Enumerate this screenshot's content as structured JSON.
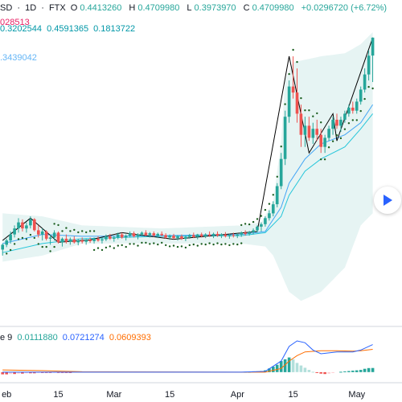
{
  "header": {
    "symbol_fragment": "SD",
    "separator1": "·",
    "interval": "1D",
    "separator2": "·",
    "exchange": "FTX",
    "o_label": "O",
    "open": "0.4413260",
    "h_label": "H",
    "high": "0.4709980",
    "l_label": "L",
    "low": "0.3973970",
    "c_label": "C",
    "close": "0.4709980",
    "change": "+0.0296720 (+6.72%)",
    "volume_fragment": "028513"
  },
  "indicators": {
    "bollinger_values": [
      "0.3202544",
      "0.4591365",
      "0.1813722"
    ],
    "ema_value": ".3439042",
    "macd_label_fragment": "e 9",
    "macd_values": [
      "0.0111880",
      "0.0721274",
      "0.0609393"
    ]
  },
  "colors": {
    "up": "#26a69a",
    "down": "#ef5350",
    "volume_text": "#e91e63",
    "bb_text": "#0097a7",
    "ema_text": "#64b5f6",
    "macd_line": "#2962ff",
    "signal_line": "#ff6d00",
    "hist_pos_strong": "#26a69a",
    "hist_pos_weak": "#b2dfdb",
    "hist_neg_strong": "#ef5350",
    "hist_neg_weak": "#ffcdd2",
    "psar": "#1b5e20",
    "band_fill": "#e6f4f3",
    "zigzag": "#000000"
  },
  "x_axis": {
    "ticks": [
      {
        "label": "eb",
        "day": 1
      },
      {
        "label": "15",
        "day": 14
      },
      {
        "label": "Mar",
        "day": 28
      },
      {
        "label": "15",
        "day": 42
      },
      {
        "label": "Apr",
        "day": 59
      },
      {
        "label": "15",
        "day": 73
      },
      {
        "label": "May",
        "day": 89
      }
    ]
  },
  "chart_data": {
    "type": "candlestick",
    "price_range": [
      0.03,
      0.48
    ],
    "macd_range": [
      -0.02,
      0.12
    ],
    "candles": [
      [
        0.12,
        0.13,
        0.11,
        0.128
      ],
      [
        0.128,
        0.138,
        0.124,
        0.135
      ],
      [
        0.135,
        0.15,
        0.13,
        0.145
      ],
      [
        0.145,
        0.16,
        0.14,
        0.155
      ],
      [
        0.155,
        0.172,
        0.148,
        0.165
      ],
      [
        0.165,
        0.17,
        0.15,
        0.155
      ],
      [
        0.155,
        0.165,
        0.148,
        0.16
      ],
      [
        0.16,
        0.175,
        0.155,
        0.17
      ],
      [
        0.17,
        0.172,
        0.15,
        0.152
      ],
      [
        0.152,
        0.16,
        0.14,
        0.145
      ],
      [
        0.145,
        0.155,
        0.135,
        0.15
      ],
      [
        0.15,
        0.152,
        0.135,
        0.138
      ],
      [
        0.138,
        0.145,
        0.128,
        0.14
      ],
      [
        0.14,
        0.152,
        0.135,
        0.148
      ],
      [
        0.148,
        0.15,
        0.13,
        0.132
      ],
      [
        0.132,
        0.14,
        0.125,
        0.138
      ],
      [
        0.138,
        0.145,
        0.13,
        0.133
      ],
      [
        0.133,
        0.14,
        0.128,
        0.137
      ],
      [
        0.137,
        0.142,
        0.13,
        0.132
      ],
      [
        0.132,
        0.138,
        0.127,
        0.135
      ],
      [
        0.135,
        0.14,
        0.13,
        0.133
      ],
      [
        0.133,
        0.138,
        0.128,
        0.136
      ],
      [
        0.136,
        0.14,
        0.131,
        0.134
      ],
      [
        0.134,
        0.14,
        0.13,
        0.138
      ],
      [
        0.138,
        0.142,
        0.133,
        0.135
      ],
      [
        0.135,
        0.14,
        0.13,
        0.137
      ],
      [
        0.137,
        0.145,
        0.134,
        0.142
      ],
      [
        0.142,
        0.146,
        0.136,
        0.138
      ],
      [
        0.138,
        0.143,
        0.133,
        0.14
      ],
      [
        0.14,
        0.148,
        0.137,
        0.145
      ],
      [
        0.145,
        0.148,
        0.138,
        0.14
      ],
      [
        0.14,
        0.145,
        0.135,
        0.143
      ],
      [
        0.143,
        0.15,
        0.14,
        0.147
      ],
      [
        0.147,
        0.15,
        0.14,
        0.142
      ],
      [
        0.142,
        0.147,
        0.137,
        0.145
      ],
      [
        0.145,
        0.15,
        0.142,
        0.148
      ],
      [
        0.148,
        0.152,
        0.142,
        0.144
      ],
      [
        0.144,
        0.149,
        0.14,
        0.147
      ],
      [
        0.147,
        0.15,
        0.141,
        0.143
      ],
      [
        0.143,
        0.148,
        0.139,
        0.146
      ],
      [
        0.146,
        0.15,
        0.142,
        0.144
      ],
      [
        0.144,
        0.147,
        0.138,
        0.14
      ],
      [
        0.14,
        0.145,
        0.136,
        0.143
      ],
      [
        0.143,
        0.146,
        0.137,
        0.139
      ],
      [
        0.139,
        0.144,
        0.135,
        0.142
      ],
      [
        0.142,
        0.145,
        0.136,
        0.138
      ],
      [
        0.138,
        0.143,
        0.134,
        0.141
      ],
      [
        0.141,
        0.146,
        0.138,
        0.144
      ],
      [
        0.144,
        0.148,
        0.139,
        0.141
      ],
      [
        0.141,
        0.146,
        0.137,
        0.145
      ],
      [
        0.145,
        0.148,
        0.14,
        0.142
      ],
      [
        0.142,
        0.147,
        0.139,
        0.145
      ],
      [
        0.145,
        0.15,
        0.141,
        0.143
      ],
      [
        0.143,
        0.148,
        0.139,
        0.146
      ],
      [
        0.146,
        0.15,
        0.141,
        0.143
      ],
      [
        0.143,
        0.147,
        0.139,
        0.145
      ],
      [
        0.145,
        0.149,
        0.14,
        0.142
      ],
      [
        0.142,
        0.146,
        0.138,
        0.144
      ],
      [
        0.144,
        0.148,
        0.14,
        0.143
      ],
      [
        0.143,
        0.147,
        0.139,
        0.145
      ],
      [
        0.145,
        0.15,
        0.141,
        0.148
      ],
      [
        0.148,
        0.152,
        0.143,
        0.146
      ],
      [
        0.146,
        0.151,
        0.143,
        0.149
      ],
      [
        0.149,
        0.155,
        0.145,
        0.152
      ],
      [
        0.152,
        0.16,
        0.148,
        0.158
      ],
      [
        0.158,
        0.165,
        0.15,
        0.162
      ],
      [
        0.162,
        0.175,
        0.158,
        0.172
      ],
      [
        0.172,
        0.185,
        0.168,
        0.18
      ],
      [
        0.18,
        0.2,
        0.175,
        0.195
      ],
      [
        0.195,
        0.23,
        0.19,
        0.225
      ],
      [
        0.225,
        0.28,
        0.22,
        0.27
      ],
      [
        0.27,
        0.35,
        0.26,
        0.34
      ],
      [
        0.34,
        0.4,
        0.33,
        0.39
      ],
      [
        0.39,
        0.44,
        0.37,
        0.38
      ],
      [
        0.38,
        0.42,
        0.33,
        0.345
      ],
      [
        0.345,
        0.36,
        0.29,
        0.31
      ],
      [
        0.31,
        0.34,
        0.29,
        0.325
      ],
      [
        0.325,
        0.34,
        0.3,
        0.305
      ],
      [
        0.305,
        0.33,
        0.295,
        0.32
      ],
      [
        0.32,
        0.335,
        0.3,
        0.31
      ],
      [
        0.31,
        0.32,
        0.28,
        0.29
      ],
      [
        0.29,
        0.31,
        0.28,
        0.305
      ],
      [
        0.305,
        0.325,
        0.3,
        0.32
      ],
      [
        0.32,
        0.34,
        0.31,
        0.335
      ],
      [
        0.335,
        0.345,
        0.32,
        0.325
      ],
      [
        0.325,
        0.34,
        0.315,
        0.335
      ],
      [
        0.335,
        0.35,
        0.33,
        0.345
      ],
      [
        0.345,
        0.36,
        0.34,
        0.355
      ],
      [
        0.355,
        0.365,
        0.345,
        0.35
      ],
      [
        0.35,
        0.37,
        0.345,
        0.365
      ],
      [
        0.365,
        0.39,
        0.36,
        0.385
      ],
      [
        0.385,
        0.42,
        0.38,
        0.41
      ],
      [
        0.41,
        0.45,
        0.4,
        0.441
      ],
      [
        0.441326,
        0.470998,
        0.397397,
        0.470998
      ]
    ],
    "bb_upper_points": [
      [
        0,
        0.18
      ],
      [
        10,
        0.175
      ],
      [
        20,
        0.16
      ],
      [
        40,
        0.155
      ],
      [
        60,
        0.16
      ],
      [
        65,
        0.165
      ],
      [
        68,
        0.2
      ],
      [
        70,
        0.3
      ],
      [
        71,
        0.4
      ],
      [
        73,
        0.43
      ],
      [
        80,
        0.44
      ],
      [
        86,
        0.445
      ],
      [
        90,
        0.46
      ],
      [
        93,
        0.48
      ]
    ],
    "bb_lower_points": [
      [
        0,
        0.1
      ],
      [
        10,
        0.11
      ],
      [
        20,
        0.13
      ],
      [
        40,
        0.13
      ],
      [
        60,
        0.13
      ],
      [
        66,
        0.125
      ],
      [
        68,
        0.11
      ],
      [
        70,
        0.08
      ],
      [
        72,
        0.05
      ],
      [
        75,
        0.035
      ],
      [
        80,
        0.05
      ],
      [
        86,
        0.09
      ],
      [
        90,
        0.16
      ],
      [
        93,
        0.18
      ]
    ],
    "ema_points": [
      [
        0,
        0.115
      ],
      [
        10,
        0.13
      ],
      [
        20,
        0.138
      ],
      [
        40,
        0.142
      ],
      [
        60,
        0.143
      ],
      [
        66,
        0.148
      ],
      [
        70,
        0.175
      ],
      [
        72,
        0.21
      ],
      [
        76,
        0.25
      ],
      [
        80,
        0.27
      ],
      [
        86,
        0.29
      ],
      [
        90,
        0.32
      ],
      [
        93,
        0.345
      ]
    ],
    "bb_basis_points": [
      [
        0,
        0.13
      ],
      [
        10,
        0.145
      ],
      [
        20,
        0.142
      ],
      [
        40,
        0.143
      ],
      [
        60,
        0.145
      ],
      [
        66,
        0.15
      ],
      [
        70,
        0.19
      ],
      [
        72,
        0.23
      ],
      [
        76,
        0.27
      ],
      [
        80,
        0.295
      ],
      [
        86,
        0.31
      ],
      [
        90,
        0.33
      ],
      [
        93,
        0.36
      ]
    ],
    "zigzag_points": [
      [
        0,
        0.135
      ],
      [
        7,
        0.172
      ],
      [
        14,
        0.132
      ],
      [
        22,
        0.136
      ],
      [
        30,
        0.148
      ],
      [
        43,
        0.137
      ],
      [
        64,
        0.15
      ],
      [
        72,
        0.44
      ],
      [
        77,
        0.28
      ],
      [
        83,
        0.345
      ],
      [
        84,
        0.3
      ],
      [
        93,
        0.471
      ]
    ],
    "psar_up_segments": [
      [
        1,
        13
      ],
      [
        23,
        60
      ],
      [
        80,
        93
      ]
    ],
    "psar_down_segments": [
      [
        13,
        23
      ],
      [
        60,
        80
      ]
    ],
    "macd_line": [
      [
        0,
        0.0
      ],
      [
        20,
        0.0
      ],
      [
        60,
        0.0
      ],
      [
        66,
        0.002
      ],
      [
        70,
        0.03
      ],
      [
        72,
        0.07
      ],
      [
        74,
        0.085
      ],
      [
        76,
        0.08
      ],
      [
        78,
        0.06
      ],
      [
        80,
        0.05
      ],
      [
        84,
        0.055
      ],
      [
        88,
        0.055
      ],
      [
        90,
        0.06
      ],
      [
        93,
        0.075
      ]
    ],
    "signal_line": [
      [
        0,
        0.006
      ],
      [
        10,
        0.004
      ],
      [
        20,
        0.001
      ],
      [
        60,
        0.0
      ],
      [
        66,
        0.0
      ],
      [
        70,
        0.01
      ],
      [
        72,
        0.03
      ],
      [
        74,
        0.045
      ],
      [
        76,
        0.055
      ],
      [
        80,
        0.058
      ],
      [
        84,
        0.058
      ],
      [
        88,
        0.057
      ],
      [
        90,
        0.058
      ],
      [
        93,
        0.062
      ]
    ],
    "histogram": [
      -0.006,
      -0.006,
      -0.005,
      -0.005,
      -0.004,
      -0.004,
      -0.003,
      -0.003,
      -0.003,
      -0.002,
      -0.002,
      -0.002,
      -0.002,
      -0.001,
      -0.001,
      -0.001,
      -0.001,
      -0.001,
      0,
      0,
      0,
      0,
      0,
      0,
      0,
      0,
      0,
      0,
      0,
      0,
      0,
      0,
      0,
      0,
      0,
      0,
      0,
      0,
      0,
      0,
      0,
      0,
      0,
      0,
      0,
      0,
      0,
      0,
      0,
      0,
      0,
      0,
      0,
      0,
      0,
      0,
      0,
      0,
      0,
      0,
      0,
      0.001,
      0.001,
      0.002,
      0.002,
      0.003,
      0.005,
      0.01,
      0.015,
      0.02,
      0.03,
      0.035,
      0.04,
      0.035,
      0.025,
      0.018,
      0.012,
      0.006,
      0.001,
      -0.002,
      -0.004,
      -0.005,
      -0.004,
      -0.002,
      0.0,
      0.001,
      0.002,
      0.003,
      0.004,
      0.005,
      0.006,
      0.009,
      0.011,
      0.011188
    ]
  }
}
